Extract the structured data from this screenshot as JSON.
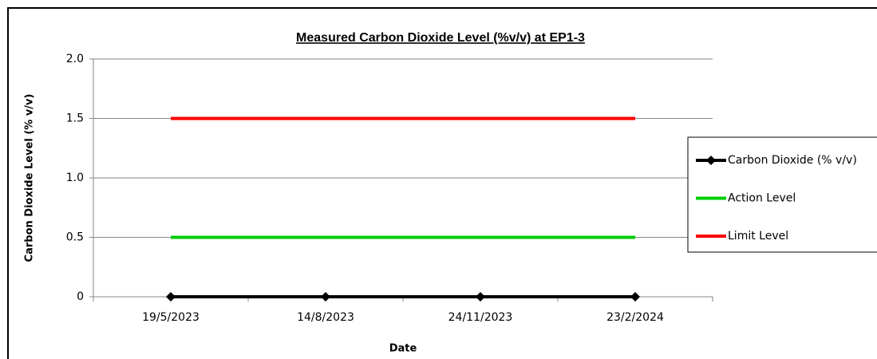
{
  "chart_data": {
    "type": "line",
    "title": "Measured Carbon Dioxide Level (%v/v) at EP1-3",
    "x_label": "Date",
    "y_label": "Carbon Dioxide Level (% v/v)",
    "categories": [
      "19/5/2023",
      "14/8/2023",
      "24/11/2023",
      "23/2/2024"
    ],
    "series": [
      {
        "name": "Carbon Dioxide (% v/v)",
        "color": "#000000",
        "marker": "diamond",
        "values": [
          0,
          0,
          0,
          0
        ]
      },
      {
        "name": "Action Level",
        "color": "#00cc00",
        "values": [
          0.5,
          0.5,
          0.5,
          0.5
        ]
      },
      {
        "name": "Limit Level",
        "color": "#ff0000",
        "values": [
          1.5,
          1.5,
          1.5,
          1.5
        ]
      }
    ],
    "ylim": [
      0,
      2
    ],
    "yticks": [
      0,
      {
        "value": 0.5,
        "label": "0.5"
      },
      {
        "value": 1,
        "label": "1.0"
      },
      {
        "value": 1.5,
        "label": "1.5"
      },
      {
        "value": 2,
        "label": "2.0"
      }
    ],
    "grid": true,
    "legend": "right"
  }
}
